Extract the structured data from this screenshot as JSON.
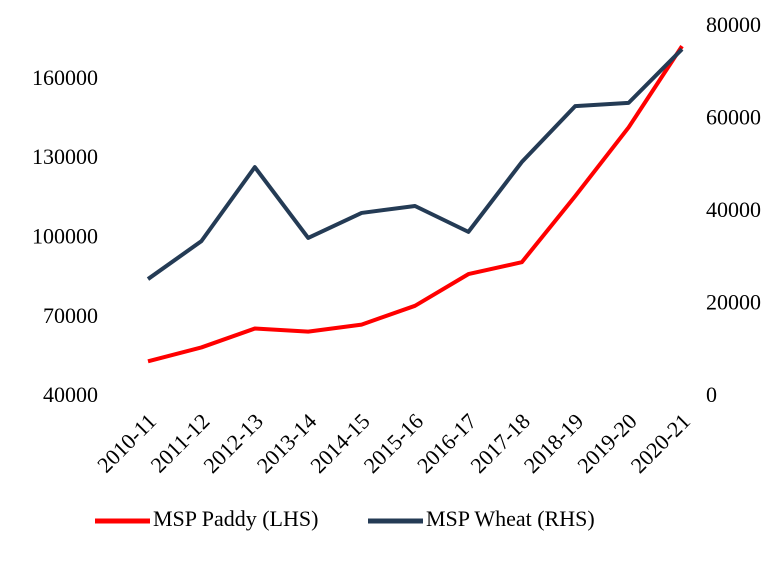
{
  "chart_data": {
    "type": "line",
    "categories": [
      "2010-11",
      "2011-12",
      "2012-13",
      "2013-14",
      "2014-15",
      "2015-16",
      "2016-17",
      "2017-18",
      "2018-19",
      "2019-20",
      "2020-21"
    ],
    "series": [
      {
        "name": "MSP Paddy (LHS)",
        "color": "#ff0000",
        "values": [
          53500,
          58750,
          65900,
          64750,
          67400,
          74500,
          86500,
          91000,
          116000,
          142000,
          172750
        ]
      },
      {
        "name": "MSP Wheat (RHS)",
        "color": "#243b55",
        "axis": "y2",
        "values": [
          25500,
          33700,
          49700,
          34400,
          39800,
          41300,
          35700,
          50800,
          62900,
          63600,
          75200
        ]
      }
    ],
    "ylim": [
      40000,
      180000
    ],
    "yticks": [
      40000,
      70000,
      100000,
      130000,
      160000
    ],
    "y2lim": [
      0,
      80000
    ],
    "y2ticks": [
      0,
      20000,
      40000,
      60000,
      80000
    ],
    "legend": "bottom"
  }
}
